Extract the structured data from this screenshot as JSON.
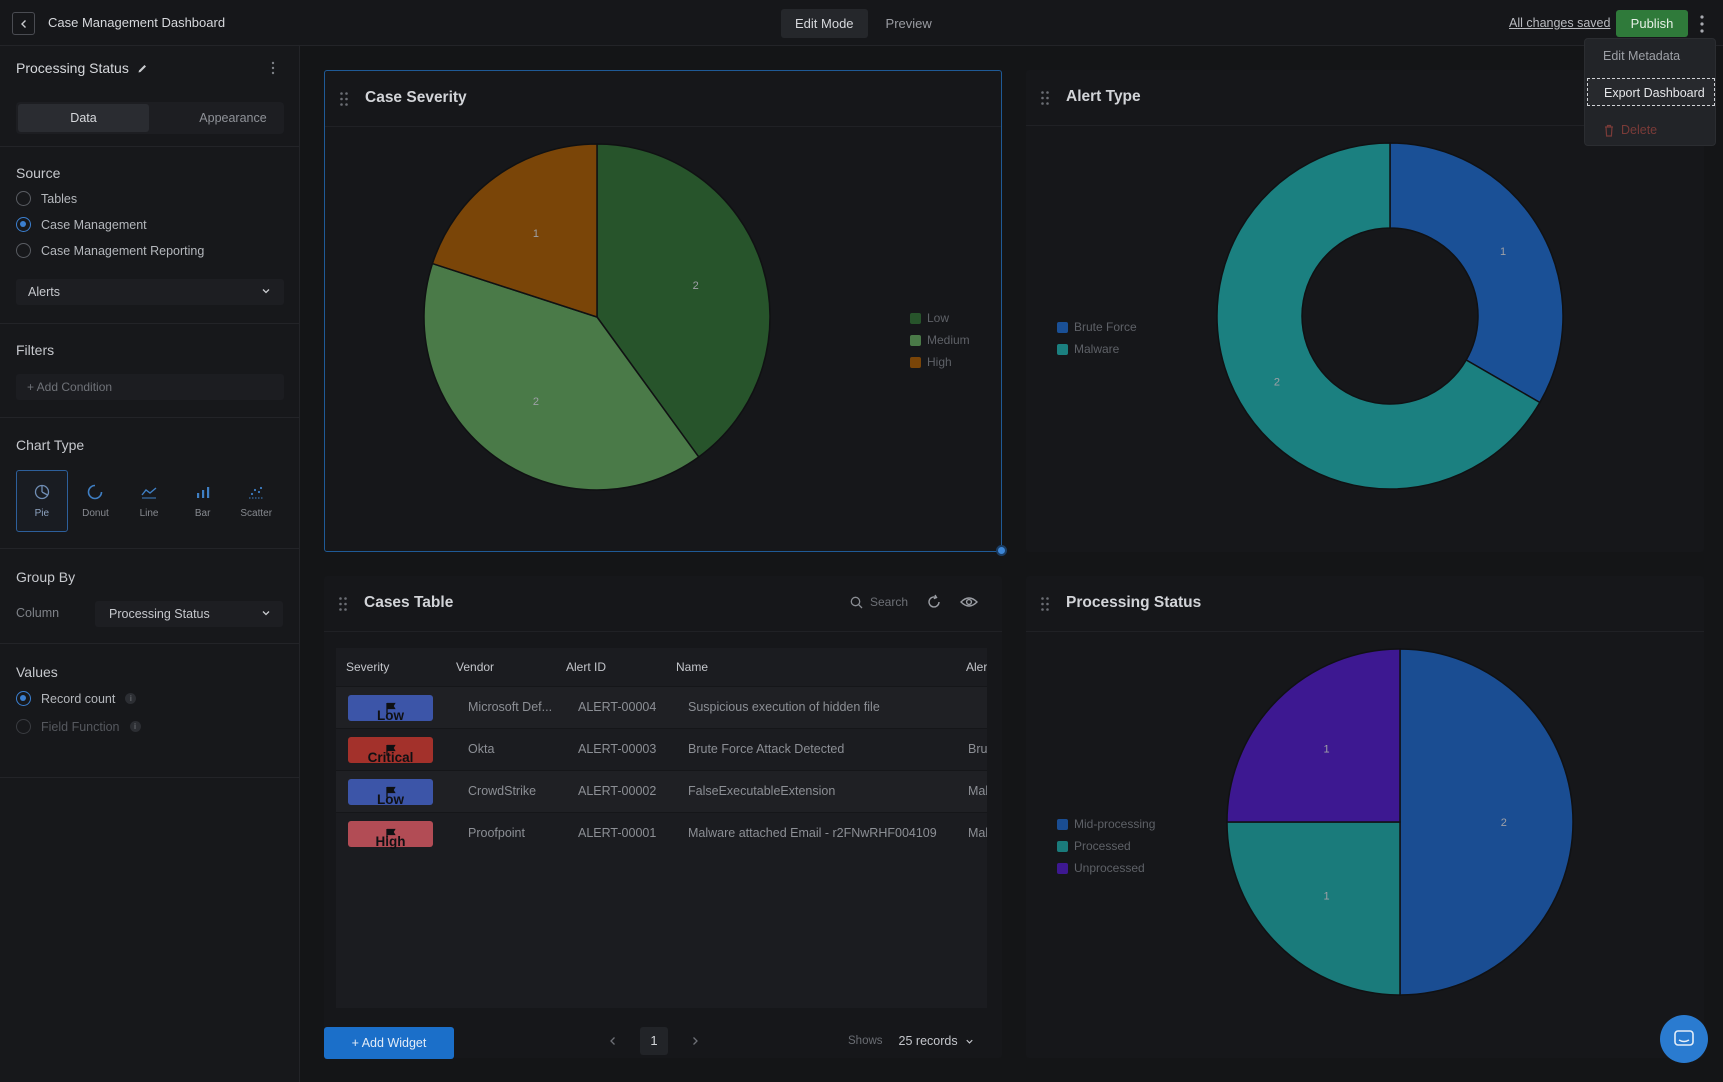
{
  "topbar": {
    "title": "Case Management Dashboard",
    "modes": [
      "Edit Mode",
      "Preview"
    ],
    "saved_status": "All changes saved",
    "publish_label": "Publish"
  },
  "menu": {
    "items": [
      "Edit Metadata",
      "Export Dashboard",
      "Delete"
    ]
  },
  "panel": {
    "title": "Processing Status",
    "tabs": [
      "Data",
      "Appearance"
    ],
    "source_title": "Source",
    "sources": [
      "Tables",
      "Case Management",
      "Case Management Reporting"
    ],
    "selected_source": "Case Management",
    "source_select_value": "Alerts",
    "filters_title": "Filters",
    "add_condition": "+ Add Condition",
    "chart_type_title": "Chart Type",
    "chart_types": [
      "Pie",
      "Donut",
      "Line",
      "Bar",
      "Scatter"
    ],
    "selected_chart_type": "Pie",
    "group_by_title": "Group By",
    "column_label": "Column",
    "column_value": "Processing Status",
    "values_title": "Values",
    "value_options": [
      "Record count",
      "Field Function"
    ],
    "selected_value": "Record count"
  },
  "widgets": {
    "case_severity": {
      "title": "Case Severity"
    },
    "alert_type": {
      "title": "Alert Type"
    },
    "cases_table": {
      "title": "Cases Table",
      "search_placeholder": "Search",
      "columns": [
        "Severity",
        "Vendor",
        "Alert ID",
        "Name",
        "Alert"
      ],
      "rows": [
        {
          "severity": "Low",
          "vendor": "Microsoft Def...",
          "alert_id": "ALERT-00004",
          "name": "Suspicious execution of hidden file",
          "alert": ""
        },
        {
          "severity": "Critical",
          "vendor": "Okta",
          "alert_id": "ALERT-00003",
          "name": "Brute Force Attack Detected",
          "alert": "Brute"
        },
        {
          "severity": "Low",
          "vendor": "CrowdStrike",
          "alert_id": "ALERT-00002",
          "name": "FalseExecutableExtension",
          "alert": "Malv"
        },
        {
          "severity": "High",
          "vendor": "Proofpoint",
          "alert_id": "ALERT-00001",
          "name": "Malware attached Email - r2FNwRHF004109",
          "alert": "Malv"
        }
      ],
      "page": "1",
      "shows_label": "Shows",
      "records_value": "25 records"
    },
    "processing_status": {
      "title": "Processing Status"
    }
  },
  "add_widget_label": "+ Add Widget",
  "severity_colors": {
    "Low": "#3c55a8",
    "Critical": "#a3312b",
    "High": "#b24c55"
  },
  "chart_data": [
    {
      "type": "pie",
      "title": "Case Severity",
      "categories": [
        "Low",
        "Medium",
        "High"
      ],
      "values": [
        2,
        2,
        1
      ],
      "colors": [
        "#27542b",
        "#4a7a48",
        "#7a4508"
      ],
      "legend": "right"
    },
    {
      "type": "pie",
      "title": "Alert Type",
      "donut": true,
      "categories": [
        "Brute Force",
        "Malware"
      ],
      "values": [
        1,
        2
      ],
      "colors": [
        "#1a5096",
        "#1b8080"
      ],
      "legend": "left"
    },
    {
      "type": "pie",
      "title": "Processing Status",
      "categories": [
        "Mid-processing",
        "Processed",
        "Unprocessed"
      ],
      "values": [
        2,
        1,
        1
      ],
      "colors": [
        "#1a4d92",
        "#1a7b7b",
        "#3d1891"
      ],
      "legend": "left"
    }
  ]
}
